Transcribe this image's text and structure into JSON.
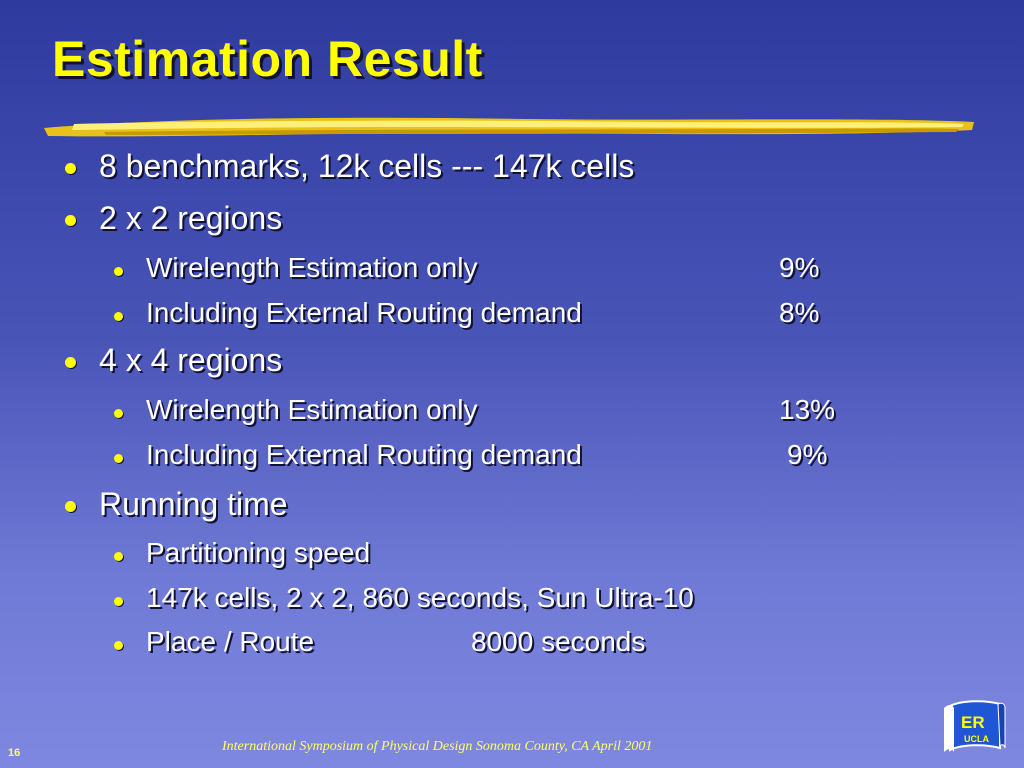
{
  "slide": {
    "title": "Estimation Result",
    "bullets": {
      "b1": "8 benchmarks, 12k cells --- 147k cells",
      "b2": "2 x 2 regions",
      "b2_s1_label": "Wirelength Estimation only",
      "b2_s1_value": "9%",
      "b2_s2_label": "Including External Routing demand",
      "b2_s2_value": "8%",
      "b3": "4 x 4 regions",
      "b3_s1_label": "Wirelength Estimation only",
      "b3_s1_value": "13%",
      "b3_s2_label": "Including External Routing demand",
      "b3_s2_value": "9%",
      "b4": "Running time",
      "b4_s1": "Partitioning speed",
      "b4_s2": "147k cells,  2 x 2,  860 seconds, Sun Ultra-10",
      "b4_s3_label": "Place / Route",
      "b4_s3_value": "8000 seconds"
    },
    "logo": {
      "main": "ER",
      "sub": "UCLA"
    },
    "footer": "International Symposium of Physical Design    Sonoma County, CA    April 2001",
    "page_number": "16",
    "colors": {
      "title": "#ffff00",
      "bullet": "#ffff00",
      "text": "#ffffff",
      "footer": "#ffff66"
    }
  }
}
